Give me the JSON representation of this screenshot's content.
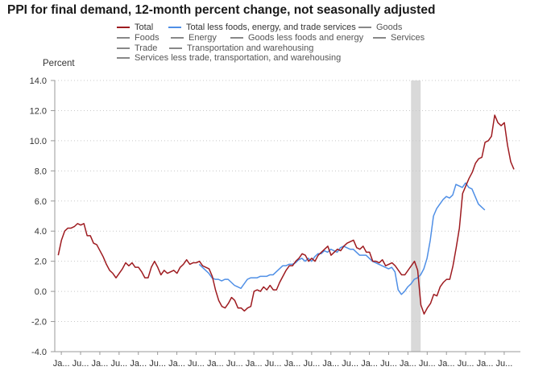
{
  "chart_data": {
    "type": "line",
    "title": "PPI for final demand, 12-month percent change, not seasonally adjusted",
    "ylabel": "Percent",
    "ylim": [
      -4,
      14
    ],
    "yticks": [
      "14.0",
      "12.0",
      "10.0",
      "8.0",
      "6.0",
      "4.0",
      "2.0",
      "0.0",
      "-2.0",
      "-4.0"
    ],
    "ytick_values": [
      14,
      12,
      10,
      8,
      6,
      4,
      2,
      0,
      -2,
      -4
    ],
    "xlim": [
      2010.83,
      2022.92
    ],
    "xticks": [
      "Ja...",
      "Ju...",
      "Ja...",
      "Ju...",
      "Ja...",
      "Ju...",
      "Ja...",
      "Ju...",
      "Ja...",
      "Ju...",
      "Ja...",
      "Ju...",
      "Ja...",
      "Ju...",
      "Ja...",
      "Ju...",
      "Ja...",
      "Ju...",
      "Ja...",
      "Ju...",
      "Ja...",
      "Ju...",
      "Ja...",
      "Ju..."
    ],
    "xtick_values": [
      2011.0,
      2011.5,
      2012.0,
      2012.5,
      2013.0,
      2013.5,
      2014.0,
      2014.5,
      2015.0,
      2015.5,
      2016.0,
      2016.5,
      2017.0,
      2017.5,
      2018.0,
      2018.5,
      2019.0,
      2019.5,
      2020.0,
      2020.5,
      2021.0,
      2021.5,
      2022.0,
      2022.5
    ],
    "grid": "horizontal dotted",
    "legend_position": "top",
    "recession": {
      "start": 2020.08,
      "end": 2020.33,
      "color": "#d9d9d9"
    },
    "series": [
      {
        "name": "Total",
        "color": "#9e1b20",
        "start": 2010.92,
        "step": 0.08333,
        "values": [
          2.4,
          3.4,
          4.0,
          4.2,
          4.2,
          4.3,
          4.5,
          4.4,
          4.5,
          3.7,
          3.7,
          3.2,
          3.1,
          2.7,
          2.3,
          1.8,
          1.4,
          1.2,
          0.9,
          1.2,
          1.5,
          1.9,
          1.7,
          1.9,
          1.6,
          1.6,
          1.3,
          0.9,
          0.9,
          1.6,
          2.0,
          1.6,
          1.1,
          1.4,
          1.2,
          1.3,
          1.4,
          1.2,
          1.6,
          1.8,
          2.1,
          1.8,
          1.9,
          1.9,
          2.0,
          1.7,
          1.6,
          1.5,
          1.0,
          0.1,
          -0.6,
          -1.0,
          -1.1,
          -0.8,
          -0.4,
          -0.6,
          -1.1,
          -1.1,
          -1.3,
          -1.1,
          -1.0,
          0.0,
          0.1,
          0.0,
          0.3,
          0.1,
          0.4,
          0.1,
          0.1,
          0.6,
          1.0,
          1.4,
          1.7,
          1.7,
          2.0,
          2.2,
          2.5,
          2.4,
          2.0,
          2.2,
          2.0,
          2.4,
          2.6,
          2.8,
          3.0,
          2.4,
          2.6,
          2.8,
          2.7,
          3.0,
          3.2,
          3.3,
          3.4,
          2.9,
          2.8,
          3.0,
          2.6,
          2.6,
          2.0,
          2.0,
          1.9,
          2.1,
          1.7,
          1.8,
          1.9,
          1.7,
          1.4,
          1.1,
          1.1,
          1.4,
          1.7,
          2.0,
          1.4,
          -0.9,
          -1.5,
          -1.1,
          -0.8,
          -0.2,
          -0.3,
          0.3,
          0.6,
          0.8,
          0.8,
          1.7,
          2.9,
          4.2,
          6.5,
          7.0,
          7.5,
          7.9,
          8.5,
          8.8,
          8.9,
          9.9,
          10.0,
          10.3,
          11.7,
          11.2,
          11.0,
          11.2,
          9.7,
          8.6,
          8.1
        ]
      },
      {
        "name": "Total less foods, energy, and trade services",
        "color": "#4f8fe6",
        "start": 2014.58,
        "step": 0.08333,
        "values": [
          1.8,
          1.6,
          1.4,
          1.2,
          0.9,
          0.8,
          0.8,
          0.7,
          0.8,
          0.8,
          0.6,
          0.4,
          0.3,
          0.2,
          0.5,
          0.8,
          0.9,
          0.9,
          0.9,
          1.0,
          1.0,
          1.0,
          1.1,
          1.1,
          1.3,
          1.5,
          1.7,
          1.7,
          1.8,
          1.8,
          1.9,
          2.1,
          2.2,
          2.0,
          2.2,
          2.0,
          2.3,
          2.5,
          2.5,
          2.7,
          2.6,
          2.8,
          2.7,
          2.6,
          2.9,
          3.0,
          2.9,
          2.8,
          2.8,
          2.6,
          2.4,
          2.4,
          2.4,
          2.2,
          2.0,
          1.9,
          1.8,
          1.7,
          1.6,
          1.5,
          1.6,
          1.3,
          0.1,
          -0.2,
          0.0,
          0.3,
          0.5,
          0.8,
          0.9,
          1.1,
          1.5,
          2.2,
          3.4,
          5.0,
          5.5,
          5.8,
          6.1,
          6.3,
          6.2,
          6.4,
          7.1,
          7.0,
          6.9,
          7.2,
          6.9,
          6.8,
          6.3,
          5.8,
          5.6,
          5.4
        ]
      }
    ],
    "legend": [
      {
        "name": "Total",
        "color": "#9e1b20"
      },
      {
        "name": "Total less foods, energy, and trade services",
        "color": "#4f8fe6"
      },
      {
        "name": "Goods",
        "color": "#888888"
      },
      {
        "name": "Foods",
        "color": "#888888"
      },
      {
        "name": "Energy",
        "color": "#888888"
      },
      {
        "name": "Goods less foods and energy",
        "color": "#888888"
      },
      {
        "name": "Services",
        "color": "#888888"
      },
      {
        "name": "Trade",
        "color": "#888888"
      },
      {
        "name": "Transportation and warehousing",
        "color": "#888888"
      },
      {
        "name": "Services less trade, transportation, and warehousing",
        "color": "#888888"
      }
    ]
  }
}
